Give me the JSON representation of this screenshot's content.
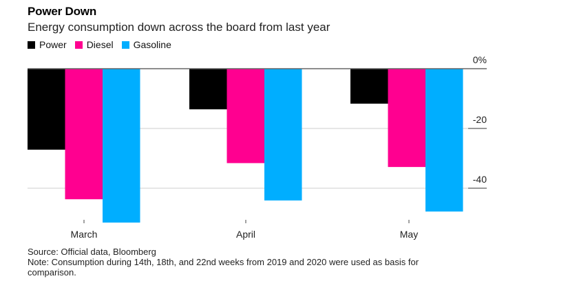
{
  "header": {
    "title": "Power Down",
    "subtitle": "Energy consumption down across the board from last year"
  },
  "legend": [
    {
      "label": "Power",
      "color": "#000000"
    },
    {
      "label": "Diesel",
      "color": "#ff0090"
    },
    {
      "label": "Gasoline",
      "color": "#00aeff"
    }
  ],
  "footer": {
    "source": "Source: Official data, Bloomberg",
    "note": "Note: Consumption during 14th, 18th, and 22nd weeks from 2019 and 2020 were used as basis for comparison."
  },
  "chart_data": {
    "type": "bar",
    "title": "Power Down",
    "subtitle": "Energy consumption down across the board from last year",
    "xlabel": "",
    "ylabel": "",
    "categories": [
      "March",
      "April",
      "May"
    ],
    "series": [
      {
        "name": "Power",
        "color": "#000000",
        "values": [
          -27.1,
          -13.6,
          -11.7
        ]
      },
      {
        "name": "Diesel",
        "color": "#ff0090",
        "values": [
          -43.7,
          -31.6,
          -32.9
        ]
      },
      {
        "name": "Gasoline",
        "color": "#00aeff",
        "values": [
          -51.5,
          -44.1,
          -47.8
        ]
      }
    ],
    "yticks": [
      0,
      -20,
      -40
    ],
    "ytick_labels": [
      "0%",
      "-20",
      "-40"
    ],
    "ylim": [
      -52,
      0
    ],
    "grid": true,
    "legend_position": "top-left",
    "yaxis_position": "right"
  }
}
